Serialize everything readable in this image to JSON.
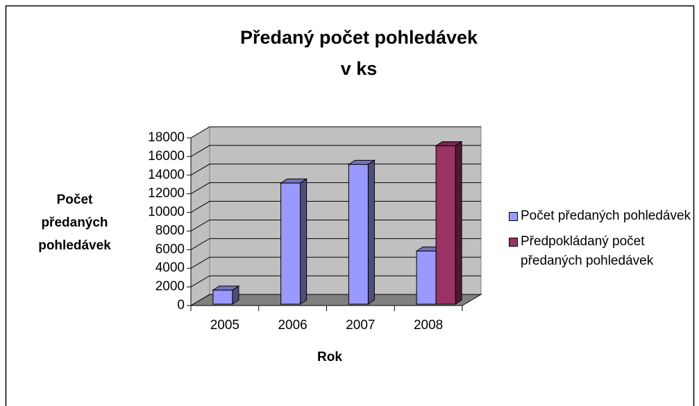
{
  "chart_data": {
    "type": "bar3d",
    "title": [
      "Předaný počet pohledávek",
      "v ks"
    ],
    "x_label": "Rok",
    "y_label": "Počet předaných pohledávek",
    "categories": [
      "2005",
      "2006",
      "2007",
      "2008"
    ],
    "series": [
      {
        "name": "Počet předaných pohledávek",
        "color": "#9999ff",
        "values": [
          1500,
          13000,
          15000,
          5700
        ]
      },
      {
        "name": "Předpokládaný počet předaných pohledávek",
        "color": "#993366",
        "values": [
          null,
          null,
          null,
          17000
        ]
      }
    ],
    "ylim": [
      0,
      18000
    ],
    "yticks": [
      0,
      2000,
      4000,
      6000,
      8000,
      10000,
      12000,
      14000,
      16000,
      18000
    ],
    "grid": true,
    "legend": "right"
  }
}
